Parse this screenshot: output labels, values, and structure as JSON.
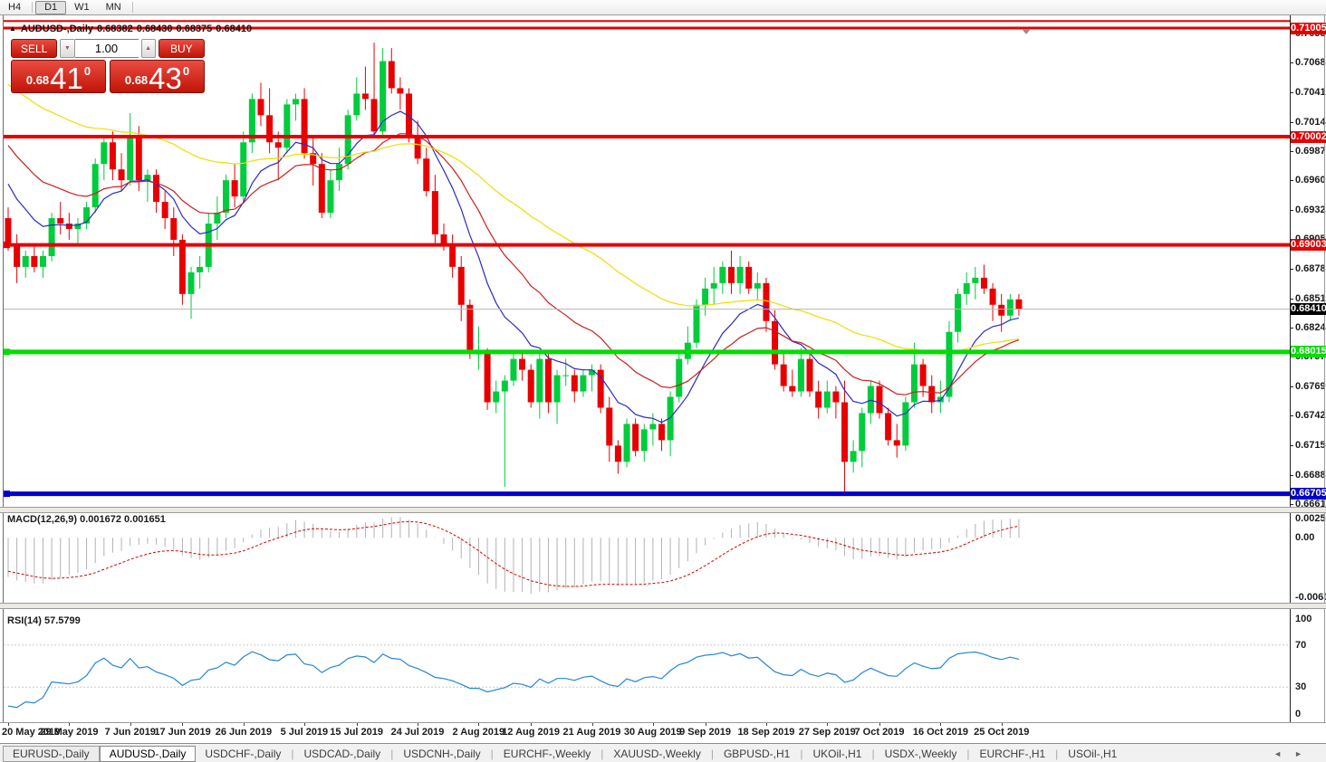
{
  "toolbar": {
    "timeframes": [
      {
        "label": "H4",
        "active": false
      },
      {
        "label": "D1",
        "active": true
      },
      {
        "label": "W1",
        "active": false
      },
      {
        "label": "MN",
        "active": false
      }
    ]
  },
  "chart_header": {
    "collapse_icon": "▲",
    "symbol": "AUDUSD-,Daily",
    "open": "0.68382",
    "high": "0.68430",
    "low": "0.68375",
    "close": "0.68410"
  },
  "trade_panel": {
    "sell_label": "SELL",
    "buy_label": "BUY",
    "volume": "1.00",
    "spin_down_icon": "▼",
    "spin_up_icon": "▲",
    "sell_price": {
      "big_figure": "0.68",
      "pips": "41",
      "pipette": "0"
    },
    "buy_price": {
      "big_figure": "0.68",
      "pips": "43",
      "pipette": "0"
    }
  },
  "price_axis": {
    "ticks": [
      "0.70955",
      "0.70685",
      "0.70415",
      "0.70140",
      "0.69870",
      "0.69600",
      "0.69325",
      "0.69055",
      "0.68785",
      "0.68510",
      "0.68240",
      "0.67970",
      "0.67695",
      "0.67425",
      "0.67150",
      "0.66880",
      "0.66610"
    ]
  },
  "indicator_labels": {
    "macd": "MACD(12,26,9) 0.001672 0.001651",
    "rsi": "RSI(14) 57.5799",
    "macd_axis": [
      "0.002574",
      "0.00",
      "-0.006326"
    ],
    "rsi_axis": [
      "100",
      "70",
      "30",
      "0"
    ]
  },
  "date_axis": {
    "labels": [
      {
        "text": "20 May 2019",
        "index": 0
      },
      {
        "text": "29 May 2019",
        "index": 7
      },
      {
        "text": "7 Jun 2019",
        "index": 14
      },
      {
        "text": "17 Jun 2019",
        "index": 20
      },
      {
        "text": "26 Jun 2019",
        "index": 27
      },
      {
        "text": "5 Jul 2019",
        "index": 34
      },
      {
        "text": "15 Jul 2019",
        "index": 40
      },
      {
        "text": "24 Jul 2019",
        "index": 47
      },
      {
        "text": "2 Aug 2019",
        "index": 54
      },
      {
        "text": "12 Aug 2019",
        "index": 60
      },
      {
        "text": "21 Aug 2019",
        "index": 67
      },
      {
        "text": "30 Aug 2019",
        "index": 74
      },
      {
        "text": "9 Sep 2019",
        "index": 80
      },
      {
        "text": "18 Sep 2019",
        "index": 87
      },
      {
        "text": "27 Sep 2019",
        "index": 94
      },
      {
        "text": "7 Oct 2019",
        "index": 100
      },
      {
        "text": "16 Oct 2019",
        "index": 107
      },
      {
        "text": "25 Oct 2019",
        "index": 114
      }
    ]
  },
  "tab_bar": {
    "scroll_left": "◄",
    "scroll_right": "►",
    "tabs": [
      {
        "label": "EURUSD-,Daily",
        "active": false
      },
      {
        "label": "AUDUSD-,Daily",
        "active": true
      },
      {
        "label": "USDCHF-,Daily",
        "active": false
      },
      {
        "label": "USDCAD-,Daily",
        "active": false
      },
      {
        "label": "USDCNH-,Daily",
        "active": false
      },
      {
        "label": "EURCHF-,Weekly",
        "active": false
      },
      {
        "label": "XAUUSD-,Weekly",
        "active": false
      },
      {
        "label": "GBPUSD-,H1",
        "active": false
      },
      {
        "label": "UKOil-,H1",
        "active": false
      },
      {
        "label": "USDX-,Weekly",
        "active": false
      },
      {
        "label": "EURCHF-,H1",
        "active": false
      },
      {
        "label": "USOil-,H1",
        "active": false
      }
    ]
  },
  "chart_data": {
    "type": "candlestick",
    "symbol": "AUDUSD",
    "timeframe": "Daily",
    "price_range": {
      "top": 0.71097,
      "bottom": 0.66585
    },
    "current_price": 0.6841,
    "current_price_label": "0.68410",
    "colors": {
      "bull": "#00cc3c",
      "bear": "#e80000",
      "current_price_line": "#b4b4b4",
      "current_badge_bg": "#000000"
    },
    "levels": [
      {
        "price": 0.7107,
        "color": "#e60000",
        "width": 2,
        "badge": false,
        "label": "",
        "handle": "none"
      },
      {
        "price": 0.71005,
        "color": "#e60000",
        "width": 3,
        "badge": true,
        "label": "0.71005",
        "handle": "triangle"
      },
      {
        "price": 0.70002,
        "color": "#e60000",
        "width": 4,
        "badge": true,
        "label": "0.70002",
        "handle": "none"
      },
      {
        "price": 0.69003,
        "color": "#e60000",
        "width": 4,
        "badge": true,
        "label": "0.69003",
        "handle": "square"
      },
      {
        "price": 0.68015,
        "color": "#00dd00",
        "width": 5,
        "badge": true,
        "label": "0.68015",
        "handle": "square"
      },
      {
        "price": 0.66705,
        "color": "#0000cc",
        "width": 5,
        "badge": true,
        "label": "0.66705",
        "handle": "square"
      }
    ],
    "moving_averages": [
      {
        "period": 10,
        "color": "#2a2ac8"
      },
      {
        "period": 21,
        "color": "#cc1e1e"
      },
      {
        "period": 55,
        "color": "#f0dc00"
      }
    ],
    "macd": {
      "fast": 12,
      "slow": 26,
      "signal": 9,
      "scale_max": 0.00265,
      "scale_min": -0.00655,
      "histogram_color": "#b2b2b2",
      "signal_color": "#d40000",
      "value": 0.001672,
      "signal_value": 0.001651
    },
    "rsi": {
      "period": 14,
      "color": "#2585d8",
      "level_color": "#c8c8c8",
      "levels": [
        30,
        70
      ],
      "scale": [
        0,
        100
      ],
      "value": 57.5799
    },
    "indicator_warmup_closes": [
      0.7125,
      0.7118,
      0.711,
      0.7115,
      0.7102,
      0.7095,
      0.71,
      0.7085,
      0.7075,
      0.708,
      0.7065,
      0.7055,
      0.706,
      0.7045,
      0.7035,
      0.704,
      0.7025,
      0.7015,
      0.702,
      0.7005,
      0.6995,
      0.7,
      0.6985,
      0.6975,
      0.698,
      0.6965,
      0.6955,
      0.696,
      0.6945,
      0.6935
    ],
    "candles": [
      [
        "2019-05-20",
        0.6925,
        0.6935,
        0.6895,
        0.69
      ],
      [
        "2019-05-21",
        0.69,
        0.691,
        0.6865,
        0.688
      ],
      [
        "2019-05-22",
        0.688,
        0.6895,
        0.687,
        0.689
      ],
      [
        "2019-05-23",
        0.689,
        0.69,
        0.6875,
        0.688
      ],
      [
        "2019-05-24",
        0.688,
        0.6895,
        0.687,
        0.689
      ],
      [
        "2019-05-27",
        0.689,
        0.693,
        0.6885,
        0.6925
      ],
      [
        "2019-05-28",
        0.6925,
        0.694,
        0.691,
        0.692
      ],
      [
        "2019-05-29",
        0.692,
        0.693,
        0.6905,
        0.6915
      ],
      [
        "2019-05-30",
        0.6915,
        0.6925,
        0.69,
        0.692
      ],
      [
        "2019-05-31",
        0.692,
        0.694,
        0.6915,
        0.6935
      ],
      [
        "2019-06-03",
        0.6935,
        0.698,
        0.693,
        0.6975
      ],
      [
        "2019-06-04",
        0.6975,
        0.7,
        0.696,
        0.6995
      ],
      [
        "2019-06-05",
        0.6995,
        0.7005,
        0.696,
        0.697
      ],
      [
        "2019-06-06",
        0.697,
        0.6985,
        0.695,
        0.696
      ],
      [
        "2019-06-07",
        0.696,
        0.7022,
        0.6955,
        0.7
      ],
      [
        "2019-06-10",
        0.7,
        0.701,
        0.695,
        0.696
      ],
      [
        "2019-06-11",
        0.696,
        0.697,
        0.694,
        0.6965
      ],
      [
        "2019-06-12",
        0.6965,
        0.697,
        0.693,
        0.694
      ],
      [
        "2019-06-13",
        0.694,
        0.695,
        0.6915,
        0.6925
      ],
      [
        "2019-06-14",
        0.6925,
        0.6935,
        0.689,
        0.6905
      ],
      [
        "2019-06-17",
        0.6905,
        0.691,
        0.6845,
        0.6855
      ],
      [
        "2019-06-18",
        0.6855,
        0.688,
        0.6832,
        0.6875
      ],
      [
        "2019-06-19",
        0.6875,
        0.689,
        0.686,
        0.688
      ],
      [
        "2019-06-20",
        0.688,
        0.693,
        0.6875,
        0.692
      ],
      [
        "2019-06-21",
        0.692,
        0.6945,
        0.6905,
        0.693
      ],
      [
        "2019-06-24",
        0.693,
        0.6965,
        0.6925,
        0.696
      ],
      [
        "2019-06-25",
        0.696,
        0.6975,
        0.6935,
        0.6945
      ],
      [
        "2019-06-26",
        0.6945,
        0.7005,
        0.694,
        0.6995
      ],
      [
        "2019-06-27",
        0.6995,
        0.704,
        0.6985,
        0.7035
      ],
      [
        "2019-06-28",
        0.7035,
        0.705,
        0.701,
        0.702
      ],
      [
        "2019-07-01",
        0.702,
        0.7045,
        0.6985,
        0.6995
      ],
      [
        "2019-07-02",
        0.6995,
        0.7005,
        0.696,
        0.699
      ],
      [
        "2019-07-03",
        0.699,
        0.7035,
        0.6985,
        0.703
      ],
      [
        "2019-07-04",
        0.703,
        0.704,
        0.7015,
        0.7035
      ],
      [
        "2019-07-05",
        0.7035,
        0.7045,
        0.698,
        0.6985
      ],
      [
        "2019-07-08",
        0.6985,
        0.7,
        0.6955,
        0.6975
      ],
      [
        "2019-07-09",
        0.6975,
        0.6985,
        0.6925,
        0.693
      ],
      [
        "2019-07-10",
        0.693,
        0.697,
        0.6925,
        0.696
      ],
      [
        "2019-07-11",
        0.696,
        0.699,
        0.695,
        0.6975
      ],
      [
        "2019-07-12",
        0.6975,
        0.7025,
        0.697,
        0.702
      ],
      [
        "2019-07-15",
        0.702,
        0.7055,
        0.7015,
        0.704
      ],
      [
        "2019-07-16",
        0.704,
        0.7065,
        0.7025,
        0.7035
      ],
      [
        "2019-07-17",
        0.7035,
        0.7087,
        0.7,
        0.7005
      ],
      [
        "2019-07-18",
        0.7005,
        0.7082,
        0.7,
        0.707
      ],
      [
        "2019-07-19",
        0.707,
        0.7082,
        0.704,
        0.7045
      ],
      [
        "2019-07-22",
        0.7045,
        0.7055,
        0.7025,
        0.704
      ],
      [
        "2019-07-23",
        0.704,
        0.7045,
        0.6995,
        0.7
      ],
      [
        "2019-07-24",
        0.7,
        0.7015,
        0.6975,
        0.698
      ],
      [
        "2019-07-25",
        0.698,
        0.699,
        0.6945,
        0.695
      ],
      [
        "2019-07-26",
        0.695,
        0.6965,
        0.69,
        0.691
      ],
      [
        "2019-07-29",
        0.691,
        0.692,
        0.6895,
        0.69
      ],
      [
        "2019-07-30",
        0.69,
        0.691,
        0.687,
        0.688
      ],
      [
        "2019-07-31",
        0.688,
        0.689,
        0.683,
        0.6845
      ],
      [
        "2019-08-01",
        0.6845,
        0.685,
        0.6795,
        0.68
      ],
      [
        "2019-08-02",
        0.68,
        0.6825,
        0.6785,
        0.68
      ],
      [
        "2019-08-05",
        0.68,
        0.6805,
        0.6748,
        0.6755
      ],
      [
        "2019-08-06",
        0.6755,
        0.6775,
        0.6745,
        0.6765
      ],
      [
        "2019-08-07",
        0.6765,
        0.678,
        0.6677,
        0.6775
      ],
      [
        "2019-08-08",
        0.6775,
        0.68,
        0.677,
        0.6795
      ],
      [
        "2019-08-09",
        0.6795,
        0.68,
        0.6775,
        0.6785
      ],
      [
        "2019-08-12",
        0.6785,
        0.679,
        0.675,
        0.6755
      ],
      [
        "2019-08-13",
        0.6755,
        0.68,
        0.674,
        0.6795
      ],
      [
        "2019-08-14",
        0.6795,
        0.68,
        0.6745,
        0.6755
      ],
      [
        "2019-08-15",
        0.6755,
        0.6785,
        0.6735,
        0.678
      ],
      [
        "2019-08-16",
        0.678,
        0.6795,
        0.677,
        0.678
      ],
      [
        "2019-08-19",
        0.678,
        0.6785,
        0.6755,
        0.6765
      ],
      [
        "2019-08-20",
        0.6765,
        0.6785,
        0.676,
        0.678
      ],
      [
        "2019-08-21",
        0.678,
        0.679,
        0.6765,
        0.6785
      ],
      [
        "2019-08-22",
        0.6785,
        0.679,
        0.6745,
        0.675
      ],
      [
        "2019-08-23",
        0.675,
        0.676,
        0.67,
        0.6715
      ],
      [
        "2019-08-26",
        0.6715,
        0.672,
        0.6689,
        0.67
      ],
      [
        "2019-08-27",
        0.67,
        0.674,
        0.6695,
        0.6735
      ],
      [
        "2019-08-28",
        0.6735,
        0.674,
        0.6705,
        0.671
      ],
      [
        "2019-08-29",
        0.671,
        0.6735,
        0.67,
        0.673
      ],
      [
        "2019-08-30",
        0.673,
        0.6745,
        0.6715,
        0.6735
      ],
      [
        "2019-09-02",
        0.6735,
        0.674,
        0.671,
        0.672
      ],
      [
        "2019-09-03",
        0.672,
        0.6765,
        0.6705,
        0.676
      ],
      [
        "2019-09-04",
        0.676,
        0.68,
        0.6755,
        0.6795
      ],
      [
        "2019-09-05",
        0.6795,
        0.6825,
        0.679,
        0.681
      ],
      [
        "2019-09-06",
        0.681,
        0.685,
        0.6805,
        0.6845
      ],
      [
        "2019-09-09",
        0.6845,
        0.687,
        0.6835,
        0.686
      ],
      [
        "2019-09-10",
        0.686,
        0.688,
        0.6845,
        0.6865
      ],
      [
        "2019-09-11",
        0.6865,
        0.6885,
        0.6855,
        0.688
      ],
      [
        "2019-09-12",
        0.688,
        0.6895,
        0.6855,
        0.6865
      ],
      [
        "2019-09-13",
        0.6865,
        0.689,
        0.6855,
        0.688
      ],
      [
        "2019-09-16",
        0.688,
        0.6885,
        0.6855,
        0.686
      ],
      [
        "2019-09-17",
        0.686,
        0.6875,
        0.685,
        0.6865
      ],
      [
        "2019-09-18",
        0.6865,
        0.687,
        0.682,
        0.683
      ],
      [
        "2019-09-19",
        0.683,
        0.684,
        0.6785,
        0.679
      ],
      [
        "2019-09-20",
        0.679,
        0.68,
        0.6765,
        0.677
      ],
      [
        "2019-09-23",
        0.677,
        0.6785,
        0.676,
        0.6765
      ],
      [
        "2019-09-24",
        0.6765,
        0.6805,
        0.676,
        0.6795
      ],
      [
        "2019-09-25",
        0.6795,
        0.68,
        0.676,
        0.6765
      ],
      [
        "2019-09-26",
        0.6765,
        0.6775,
        0.674,
        0.675
      ],
      [
        "2019-09-27",
        0.675,
        0.6775,
        0.6745,
        0.6765
      ],
      [
        "2019-09-30",
        0.6765,
        0.677,
        0.674,
        0.6755
      ],
      [
        "2019-10-01",
        0.6755,
        0.6775,
        0.667,
        0.67
      ],
      [
        "2019-10-02",
        0.67,
        0.672,
        0.669,
        0.671
      ],
      [
        "2019-10-03",
        0.671,
        0.675,
        0.6695,
        0.6745
      ],
      [
        "2019-10-04",
        0.6745,
        0.6775,
        0.6735,
        0.677
      ],
      [
        "2019-10-07",
        0.677,
        0.6775,
        0.674,
        0.6745
      ],
      [
        "2019-10-08",
        0.6745,
        0.675,
        0.6715,
        0.672
      ],
      [
        "2019-10-09",
        0.672,
        0.6735,
        0.6704,
        0.6715
      ],
      [
        "2019-10-10",
        0.6715,
        0.676,
        0.671,
        0.6755
      ],
      [
        "2019-10-11",
        0.6755,
        0.681,
        0.675,
        0.679
      ],
      [
        "2019-10-14",
        0.679,
        0.6795,
        0.676,
        0.677
      ],
      [
        "2019-10-15",
        0.677,
        0.678,
        0.6745,
        0.6755
      ],
      [
        "2019-10-16",
        0.6755,
        0.6775,
        0.6745,
        0.676
      ],
      [
        "2019-10-17",
        0.676,
        0.683,
        0.6755,
        0.682
      ],
      [
        "2019-10-18",
        0.682,
        0.686,
        0.681,
        0.6855
      ],
      [
        "2019-10-21",
        0.6855,
        0.6875,
        0.6845,
        0.6865
      ],
      [
        "2019-10-22",
        0.6865,
        0.688,
        0.685,
        0.687
      ],
      [
        "2019-10-23",
        0.687,
        0.6882,
        0.6855,
        0.686
      ],
      [
        "2019-10-24",
        0.686,
        0.6865,
        0.683,
        0.6845
      ],
      [
        "2019-10-25",
        0.6845,
        0.6855,
        0.682,
        0.6835
      ],
      [
        "2019-10-28",
        0.6835,
        0.6855,
        0.683,
        0.685
      ],
      [
        "2019-10-29",
        0.685,
        0.6855,
        0.6835,
        0.6841
      ]
    ]
  }
}
